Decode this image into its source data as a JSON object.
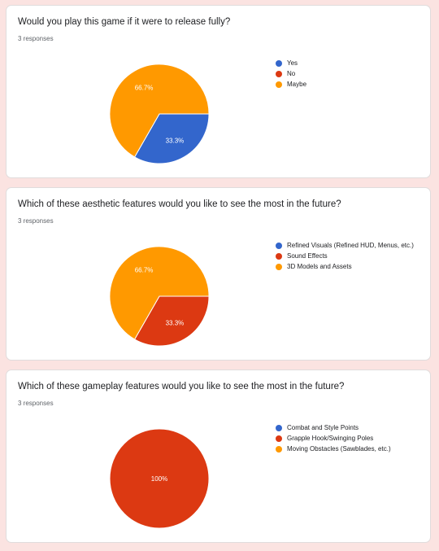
{
  "colors": {
    "blue": "#3366cc",
    "red": "#dc3912",
    "orange": "#ff9900"
  },
  "questions": [
    {
      "title": "Would you play this game if it were to release fully?",
      "responses": "3 responses",
      "legend": [
        {
          "label": "Yes",
          "color": "#3366cc"
        },
        {
          "label": "No",
          "color": "#dc3912"
        },
        {
          "label": "Maybe",
          "color": "#ff9900"
        }
      ]
    },
    {
      "title": "Which of these aesthetic features would you like to see the most in the future?",
      "responses": "3 responses",
      "legend": [
        {
          "label": "Refined Visuals (Refined HUD, Menus, etc.)",
          "color": "#3366cc"
        },
        {
          "label": "Sound Effects",
          "color": "#dc3912"
        },
        {
          "label": "3D Models and Assets",
          "color": "#ff9900"
        }
      ]
    },
    {
      "title": "Which of these gameplay features would you like to see the most in the future?",
      "responses": "3 responses",
      "legend": [
        {
          "label": "Combat and Style Points",
          "color": "#3366cc"
        },
        {
          "label": "Grapple Hook/Swinging Poles",
          "color": "#dc3912"
        },
        {
          "label": "Moving Obstacles (Sawblades, etc.)",
          "color": "#ff9900"
        }
      ]
    }
  ],
  "chart_data": [
    {
      "type": "pie",
      "title": "Would you play this game if it were to release fully?",
      "slices": [
        {
          "label": "Yes",
          "value": 33.3,
          "display": "33.3%",
          "color": "#3366cc"
        },
        {
          "label": "No",
          "value": 0,
          "display": "",
          "color": "#dc3912"
        },
        {
          "label": "Maybe",
          "value": 66.7,
          "display": "66.7%",
          "color": "#ff9900"
        }
      ],
      "legend_position": "right"
    },
    {
      "type": "pie",
      "title": "Which of these aesthetic features would you like to see the most in the future?",
      "slices": [
        {
          "label": "Refined Visuals (Refined HUD, Menus, etc.)",
          "value": 0,
          "display": "",
          "color": "#3366cc"
        },
        {
          "label": "Sound Effects",
          "value": 33.3,
          "display": "33.3%",
          "color": "#dc3912"
        },
        {
          "label": "3D Models and Assets",
          "value": 66.7,
          "display": "66.7%",
          "color": "#ff9900"
        }
      ],
      "legend_position": "right"
    },
    {
      "type": "pie",
      "title": "Which of these gameplay features would you like to see the most in the future?",
      "slices": [
        {
          "label": "Combat and Style Points",
          "value": 0,
          "display": "",
          "color": "#3366cc"
        },
        {
          "label": "Grapple Hook/Swinging Poles",
          "value": 100,
          "display": "100%",
          "color": "#dc3912"
        },
        {
          "label": "Moving Obstacles (Sawblades, etc.)",
          "value": 0,
          "display": "",
          "color": "#ff9900"
        }
      ],
      "legend_position": "right"
    }
  ]
}
